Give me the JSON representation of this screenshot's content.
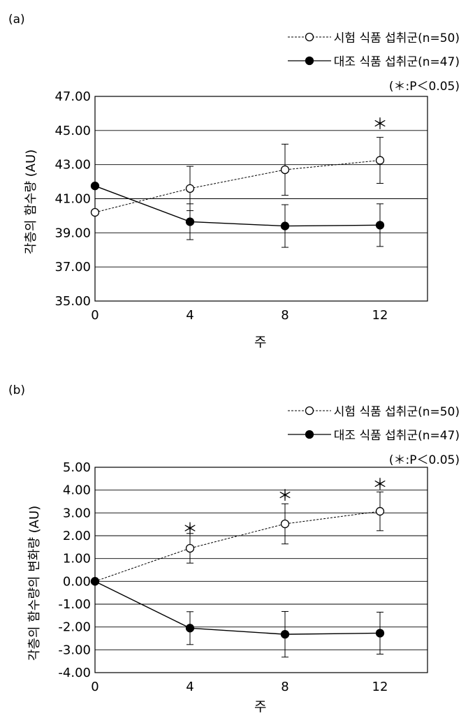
{
  "panel_labels": [
    "(a)",
    "(b)"
  ],
  "legend": {
    "test": "시험 식품 섭취군(n=50)",
    "control": "대조 식품 섭취군(n=47)",
    "significance": "(＊:P＜0.05)"
  },
  "chart_data": [
    {
      "type": "line",
      "xlabel": "주",
      "ylabel": "각층의 함수량 (AU)",
      "x": [
        0,
        4,
        8,
        12
      ],
      "xlim": [
        0,
        14
      ],
      "ylim": [
        35,
        47
      ],
      "yticks": [
        "35.00",
        "37.00",
        "39.00",
        "41.00",
        "43.00",
        "45.00",
        "47.00"
      ],
      "xticks": [
        "0",
        "4",
        "8",
        "12"
      ],
      "grid": true,
      "legend_position": "top-right",
      "series": [
        {
          "name": "시험 식품 섭취군(n=50)",
          "style": "dashed",
          "marker": "open-circle",
          "values": [
            40.2,
            41.6,
            42.7,
            43.25
          ],
          "error": [
            0.0,
            1.3,
            1.5,
            1.35
          ]
        },
        {
          "name": "대조 식품 섭취군(n=47)",
          "style": "solid",
          "marker": "filled-circle",
          "values": [
            41.75,
            39.65,
            39.4,
            39.45
          ],
          "error": [
            0.0,
            1.05,
            1.25,
            1.25
          ]
        }
      ],
      "annotations": [
        {
          "x": 12,
          "text": "＊",
          "y": 45.45
        }
      ]
    },
    {
      "type": "line",
      "xlabel": "주",
      "ylabel": "각층의 함수량의 변화량 (AU)",
      "x": [
        0,
        4,
        8,
        12
      ],
      "xlim": [
        0,
        14
      ],
      "ylim": [
        -4,
        5
      ],
      "yticks": [
        "-4.00",
        "-3.00",
        "-2.00",
        "-1.00",
        "0.00",
        "1.00",
        "2.00",
        "3.00",
        "4.00",
        "5.00"
      ],
      "xticks": [
        "0",
        "4",
        "8",
        "12"
      ],
      "grid": true,
      "legend_position": "top-right",
      "series": [
        {
          "name": "시험 식품 섭취군(n=50)",
          "style": "dashed",
          "marker": "open-circle",
          "values": [
            0.0,
            1.45,
            2.52,
            3.07
          ],
          "error": [
            0.0,
            0.65,
            0.88,
            0.85
          ]
        },
        {
          "name": "대조 식품 섭취군(n=47)",
          "style": "solid",
          "marker": "filled-circle",
          "values": [
            0.0,
            -2.05,
            -2.32,
            -2.27
          ],
          "error": [
            0.0,
            0.72,
            1.0,
            0.92
          ]
        }
      ],
      "annotations": [
        {
          "x": 4,
          "text": "＊",
          "y": 2.35
        },
        {
          "x": 8,
          "text": "＊",
          "y": 3.8
        },
        {
          "x": 12,
          "text": "＊",
          "y": 4.3
        }
      ]
    }
  ]
}
